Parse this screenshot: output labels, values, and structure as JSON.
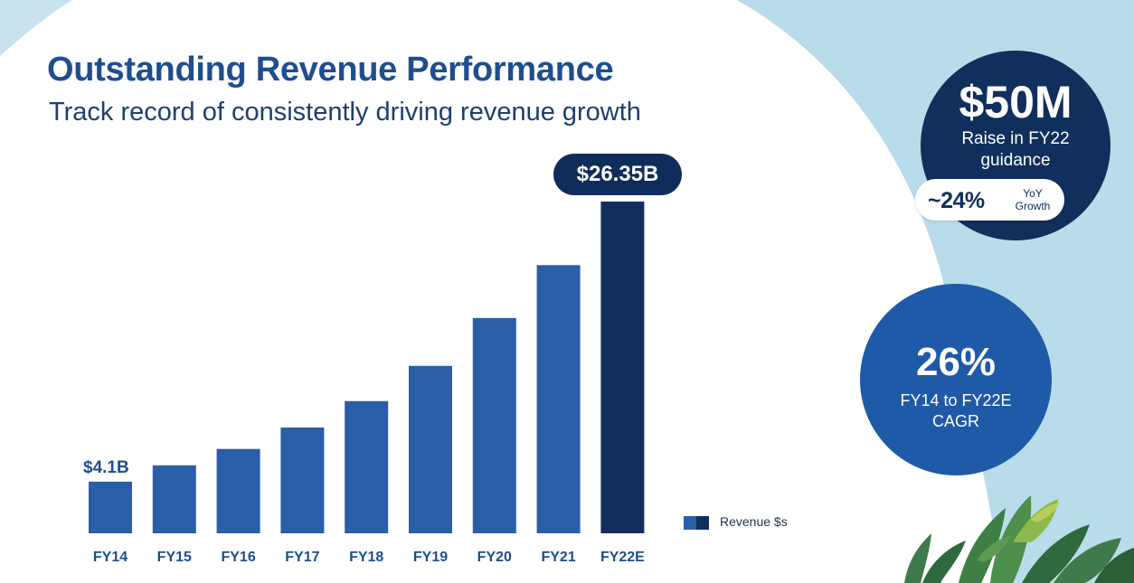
{
  "header": {
    "title": "Outstanding Revenue Performance",
    "subtitle": "Track record of consistently driving revenue growth"
  },
  "chart_data": {
    "type": "bar",
    "categories": [
      "FY14",
      "FY15",
      "FY16",
      "FY17",
      "FY18",
      "FY19",
      "FY20",
      "FY21",
      "FY22E"
    ],
    "values": [
      4.1,
      5.4,
      6.7,
      8.4,
      10.5,
      13.3,
      17.1,
      21.3,
      26.35
    ],
    "unit": "$B",
    "ylim": [
      0,
      26.35
    ],
    "grid": false,
    "legend_placement": "bottom-right",
    "data_labels": {
      "first": "$4.1B",
      "last": "$26.35B"
    },
    "series": [
      {
        "name": "Revenue $s",
        "values": [
          4.1,
          5.4,
          6.7,
          8.4,
          10.5,
          13.3,
          17.1,
          21.3,
          26.35
        ]
      }
    ],
    "colors": {
      "bar": "#2a5ea8",
      "highlight": "#112f5c",
      "axis_text": "#1f4e8f"
    }
  },
  "callouts": {
    "guidance": {
      "value": "$50M",
      "line1": "Raise in FY22",
      "line2": "guidance",
      "growth_value": "~24%",
      "growth_line1": "YoY",
      "growth_line2": "Growth"
    },
    "cagr": {
      "value": "26%",
      "line1": "FY14 to FY22E",
      "line2": "CAGR"
    }
  },
  "colors": {
    "title": "#1f4e8f",
    "background_accent": "#b9dcea",
    "dark_navy": "#112f5c",
    "mid_blue": "#1f5aa8"
  }
}
